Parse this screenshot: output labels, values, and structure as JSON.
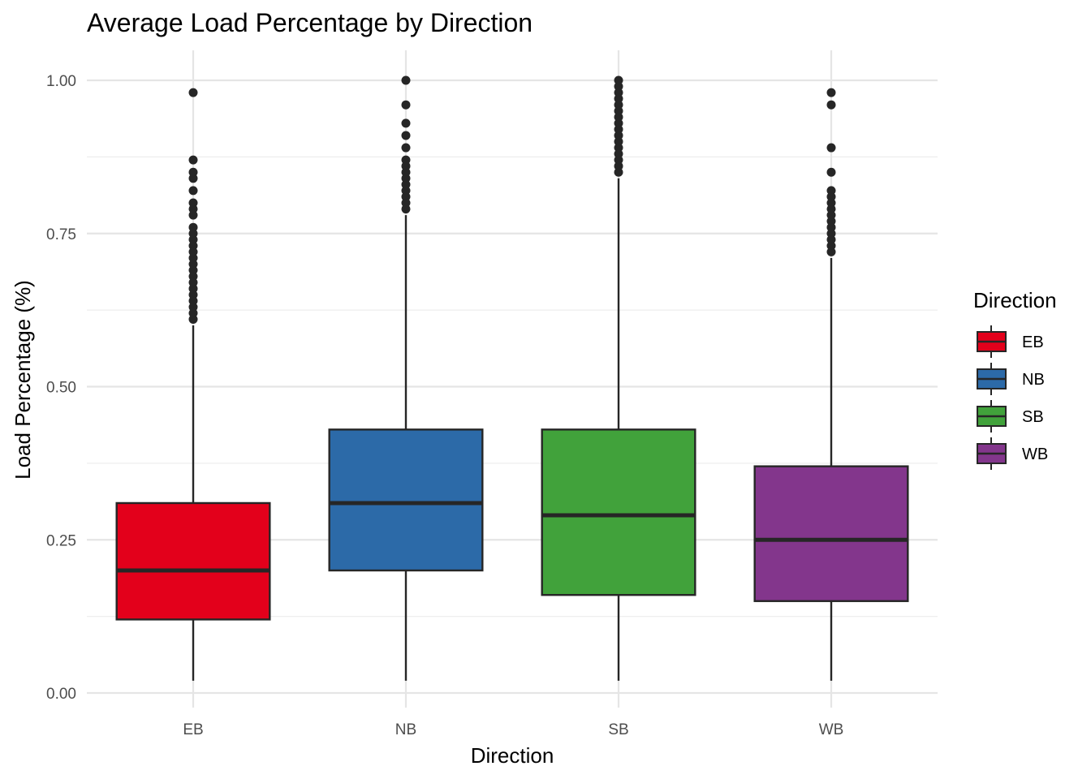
{
  "chart_data": {
    "type": "box",
    "title": "Average Load Percentage by Direction",
    "xlabel": "Direction",
    "ylabel": "Load Percentage (%)",
    "ylim": [
      -0.02,
      1.05
    ],
    "yticks": [
      0.0,
      0.25,
      0.5,
      0.75,
      1.0
    ],
    "ytick_labels": [
      "0.00",
      "0.25",
      "0.50",
      "0.75",
      "1.00"
    ],
    "grid": true,
    "legend": {
      "title": "Direction",
      "position": "right"
    },
    "categories": [
      "EB",
      "NB",
      "SB",
      "WB"
    ],
    "series": [
      {
        "name": "EB",
        "color": "#E3001B",
        "min": 0.02,
        "q1": 0.12,
        "median": 0.2,
        "q3": 0.31,
        "max": 0.6,
        "outliers": [
          0.98,
          0.87,
          0.85,
          0.84,
          0.82,
          0.8,
          0.79,
          0.78,
          0.76,
          0.75,
          0.74,
          0.73,
          0.72,
          0.71,
          0.7,
          0.69,
          0.68,
          0.67,
          0.66,
          0.65,
          0.64,
          0.63,
          0.62,
          0.61
        ]
      },
      {
        "name": "NB",
        "color": "#2C6AA8",
        "min": 0.02,
        "q1": 0.2,
        "median": 0.31,
        "q3": 0.43,
        "max": 0.78,
        "outliers": [
          1.0,
          0.96,
          0.93,
          0.91,
          0.89,
          0.87,
          0.86,
          0.85,
          0.84,
          0.83,
          0.82,
          0.81,
          0.8,
          0.79
        ]
      },
      {
        "name": "SB",
        "color": "#41A23B",
        "min": 0.02,
        "q1": 0.16,
        "median": 0.29,
        "q3": 0.43,
        "max": 0.84,
        "outliers": [
          1.0,
          0.99,
          0.98,
          0.97,
          0.96,
          0.95,
          0.94,
          0.93,
          0.92,
          0.91,
          0.9,
          0.89,
          0.88,
          0.87,
          0.86,
          0.85
        ]
      },
      {
        "name": "WB",
        "color": "#83368C",
        "min": 0.02,
        "q1": 0.15,
        "median": 0.25,
        "q3": 0.37,
        "max": 0.71,
        "outliers": [
          0.98,
          0.96,
          0.89,
          0.85,
          0.82,
          0.81,
          0.8,
          0.79,
          0.78,
          0.77,
          0.76,
          0.75,
          0.74,
          0.73,
          0.72
        ]
      }
    ]
  }
}
